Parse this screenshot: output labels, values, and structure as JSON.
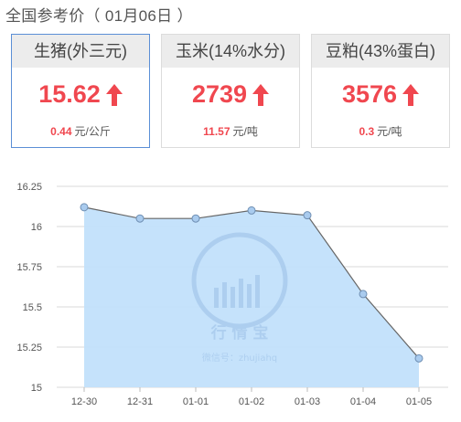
{
  "header": {
    "title": "全国参考价（ 01月06日 ）"
  },
  "cards": [
    {
      "name": "生猪(外三元)",
      "price": "15.62",
      "change": "0.44",
      "unit": "元/公斤",
      "trend": "up"
    },
    {
      "name": "玉米(14%水分)",
      "price": "2739",
      "change": "11.57",
      "unit": "元/吨",
      "trend": "up"
    },
    {
      "name": "豆粕(43%蛋白)",
      "price": "3576",
      "change": "0.3",
      "unit": "元/吨",
      "trend": "up"
    }
  ],
  "watermark": {
    "brand": "行 情 宝",
    "wechat": "微信号：zhujiahq"
  },
  "colors": {
    "accent_red": "#f0474f",
    "active_border": "#5b8fd6",
    "area_fill": "#c2e0fb",
    "line": "#666666",
    "point": "#a9cbee"
  },
  "chart_data": {
    "type": "area",
    "title": "",
    "xlabel": "",
    "ylabel": "",
    "categories": [
      "12-30",
      "12-31",
      "01-01",
      "01-02",
      "01-03",
      "01-04",
      "01-05"
    ],
    "values": [
      16.12,
      16.05,
      16.05,
      16.1,
      16.07,
      15.58,
      15.18
    ],
    "ylim": [
      15,
      16.25
    ],
    "yticks": [
      "16.25",
      "16",
      "15.75",
      "15.5",
      "15.25",
      "15"
    ],
    "grid": true,
    "legend": "none"
  }
}
